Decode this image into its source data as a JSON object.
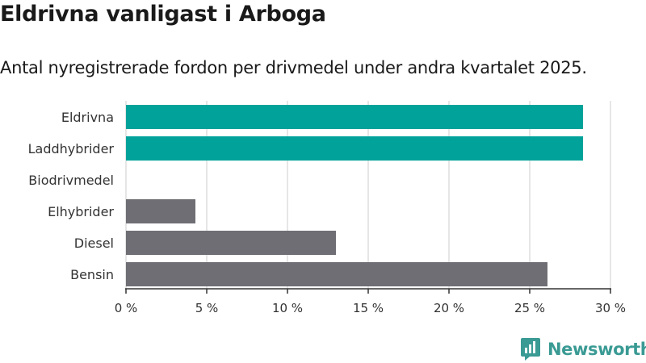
{
  "title": "Eldrivna vanligast i Arboga",
  "subtitle": "Antal nyregistrerade fordon per drivmedel under andra kvartalet 2025.",
  "brand": "Newsworthy",
  "colors": {
    "highlight": "#00a29a",
    "other": "#6e6e74",
    "grid": "#dddddd",
    "brand": "#3a9a94"
  },
  "chart_data": {
    "type": "bar",
    "orientation": "horizontal",
    "categories": [
      "Eldrivna",
      "Laddhybrider",
      "Biodrivmedel",
      "Elhybrider",
      "Diesel",
      "Bensin"
    ],
    "values": [
      28.3,
      28.3,
      0,
      4.3,
      13.0,
      26.1
    ],
    "highlighted": [
      true,
      true,
      false,
      false,
      false,
      false
    ],
    "xlim": [
      0,
      30
    ],
    "xticks": [
      0,
      5,
      10,
      15,
      20,
      25,
      30
    ],
    "xtick_labels": [
      "0 %",
      "5 %",
      "10 %",
      "15 %",
      "20 %",
      "25 %",
      "30 %"
    ],
    "grid": true
  }
}
